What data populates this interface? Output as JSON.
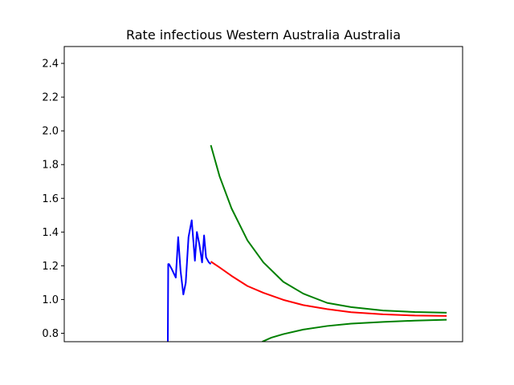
{
  "chart_data": {
    "type": "line",
    "title": "Rate infectious Western Australia Australia",
    "xlabel": "",
    "ylabel": "",
    "xlim": [
      0,
      100
    ],
    "ylim": [
      0.75,
      2.5
    ],
    "yticks": [
      0.8,
      1.0,
      1.2,
      1.4,
      1.6,
      1.8,
      2.0,
      2.2,
      2.4
    ],
    "grid": false,
    "legend": "none",
    "series": [
      {
        "color": "#0000ff",
        "x": [
          26.0,
          26.1,
          26.3,
          27.0,
          28.0,
          28.6,
          29.2,
          29.9,
          30.5,
          31.2,
          32.0,
          32.8,
          33.3,
          33.9,
          34.6,
          35.1,
          35.6,
          36.3,
          36.8
        ],
        "y": [
          0.75,
          1.21,
          1.21,
          1.18,
          1.13,
          1.37,
          1.17,
          1.03,
          1.1,
          1.37,
          1.47,
          1.23,
          1.4,
          1.33,
          1.22,
          1.38,
          1.25,
          1.22,
          1.21
        ]
      },
      {
        "color": "#ff0000",
        "x": [
          36.8,
          39,
          42,
          46,
          50,
          55,
          60,
          66,
          72,
          80,
          88,
          96
        ],
        "y": [
          1.225,
          1.19,
          1.14,
          1.08,
          1.04,
          0.998,
          0.967,
          0.943,
          0.925,
          0.912,
          0.905,
          0.903
        ]
      },
      {
        "color": "#008000",
        "x": [
          36.8,
          39,
          42,
          46,
          50,
          55,
          60,
          66,
          72,
          80,
          88,
          96
        ],
        "y": [
          1.915,
          1.73,
          1.54,
          1.35,
          1.22,
          1.105,
          1.035,
          0.98,
          0.955,
          0.935,
          0.926,
          0.922
        ]
      },
      {
        "color": "#008000",
        "x": [
          49.7,
          52,
          55,
          60,
          66,
          72,
          80,
          88,
          96
        ],
        "y": [
          0.75,
          0.774,
          0.795,
          0.822,
          0.843,
          0.857,
          0.867,
          0.875,
          0.88
        ]
      }
    ]
  }
}
